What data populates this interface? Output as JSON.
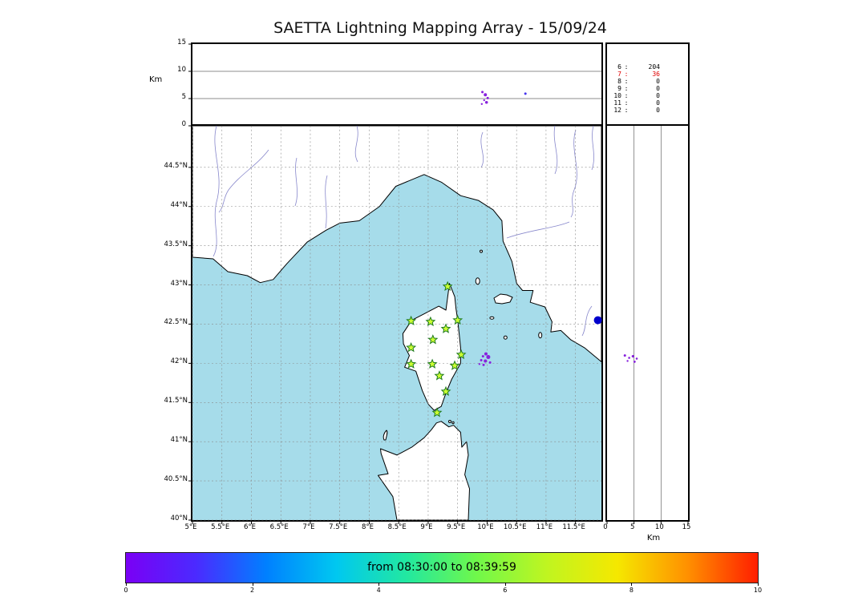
{
  "title": "SAETTA Lightning Mapping Array - 15/09/24",
  "top_panel": {
    "ylabel": "Km"
  },
  "right_panel": {
    "xlabel": "Km"
  },
  "stats": {
    "rows": [
      {
        "label": "6",
        "value": "204",
        "color": "#000000"
      },
      {
        "label": "7",
        "value": "36",
        "color": "#e00000"
      },
      {
        "label": "8",
        "value": "0",
        "color": "#000000"
      },
      {
        "label": "9",
        "value": "0",
        "color": "#000000"
      },
      {
        "label": "10",
        "value": "0",
        "color": "#000000"
      },
      {
        "label": "11",
        "value": "0",
        "color": "#000000"
      },
      {
        "label": "12",
        "value": "0",
        "color": "#000000"
      }
    ]
  },
  "colorbar": {
    "label": "from 08:30:00 to 08:39:59",
    "ticks": [
      0,
      2,
      4,
      6,
      8,
      10
    ],
    "range": [
      0,
      10
    ],
    "gradient": [
      "#7a00f5",
      "#4b2aff",
      "#0080ff",
      "#00c8f0",
      "#22e8a0",
      "#70f84a",
      "#c0f520",
      "#f5e800",
      "#ff9000",
      "#ff1e00"
    ]
  },
  "colors": {
    "sea": "#a6dcea",
    "land": "#ffffff",
    "river": "#8888cc",
    "station_fill": "#ccff33",
    "station_stroke": "#1e7a1e",
    "lightning": "#8822dd",
    "edge_marker": "#0000cc"
  },
  "chart_data": {
    "type": "scatter",
    "title": "SAETTA Lightning Mapping Array - 15/09/24",
    "time_range": "from 08:30:00 to 08:39:59",
    "map_panel": {
      "lon_range": [
        5,
        11.94
      ],
      "lat_range": [
        40,
        45.03
      ],
      "lon_ticks": [
        5,
        5.5,
        6,
        6.5,
        7,
        7.5,
        8,
        8.5,
        9,
        9.5,
        10,
        10.5,
        11,
        11.5
      ],
      "lon_tick_labels": [
        "5°E",
        "5.5°E",
        "6°E",
        "6.5°E",
        "7°E",
        "7.5°E",
        "8°E",
        "8.5°E",
        "9°E",
        "9.5°E",
        "10°E",
        "10.5°E",
        "11°E",
        "11.5°E"
      ],
      "lat_ticks": [
        40,
        40.5,
        41,
        41.5,
        42,
        42.5,
        43,
        43.5,
        44,
        44.5
      ],
      "lat_tick_labels": [
        "40°N",
        "40.5°N",
        "41°N",
        "41.5°N",
        "42°N",
        "42.5°N",
        "43°N",
        "43.5°N",
        "44°N",
        "44.5°N"
      ]
    },
    "alt_panel": {
      "range_km": [
        0,
        15
      ],
      "ticks": [
        0,
        5,
        10,
        15
      ],
      "gridlines": [
        5,
        10
      ]
    },
    "stations_lonlat": [
      [
        9.33,
        42.98
      ],
      [
        8.71,
        42.54
      ],
      [
        9.04,
        42.53
      ],
      [
        9.3,
        42.44
      ],
      [
        9.5,
        42.55
      ],
      [
        9.08,
        42.3
      ],
      [
        8.71,
        42.2
      ],
      [
        9.56,
        42.11
      ],
      [
        8.71,
        41.99
      ],
      [
        9.07,
        41.99
      ],
      [
        9.45,
        41.97
      ],
      [
        9.19,
        41.84
      ],
      [
        9.3,
        41.64
      ],
      [
        9.15,
        41.37
      ]
    ],
    "lightning": {
      "color": "#8822dd",
      "map_points": [
        [
          9.98,
          42.12,
          2.0
        ],
        [
          9.93,
          42.09,
          1.5
        ],
        [
          10.02,
          42.08,
          2.5
        ],
        [
          9.9,
          42.04,
          1.5
        ],
        [
          9.97,
          42.03,
          2.0
        ],
        [
          10.05,
          42.01,
          1.5
        ],
        [
          9.87,
          41.99,
          1.2
        ],
        [
          9.94,
          41.98,
          1.5
        ]
      ],
      "alt_lon_points": [
        [
          9.92,
          6.2,
          1.5
        ],
        [
          9.97,
          5.7,
          2.0
        ],
        [
          10.01,
          5.1,
          1.5
        ],
        [
          9.95,
          4.7,
          1.2
        ],
        [
          9.99,
          4.3,
          1.8
        ],
        [
          9.91,
          4.0,
          1.2
        ],
        [
          10.65,
          5.9,
          1.5,
          "#4433ee"
        ]
      ],
      "alt_lat_points": [
        [
          3.3,
          42.1,
          1.5
        ],
        [
          4.1,
          42.07,
          1.3
        ],
        [
          4.8,
          42.09,
          1.6
        ],
        [
          5.5,
          42.06,
          1.3
        ],
        [
          3.8,
          42.03,
          1.2
        ],
        [
          5.1,
          42.02,
          1.4
        ]
      ]
    },
    "edge_marker": {
      "lon": 11.88,
      "lat": 42.55,
      "radius": 5,
      "color": "#0000cc"
    },
    "counts_by_sensor": {
      "6": 204,
      "7": 36,
      "8": 0,
      "9": 0,
      "10": 0,
      "11": 0,
      "12": 0
    }
  }
}
